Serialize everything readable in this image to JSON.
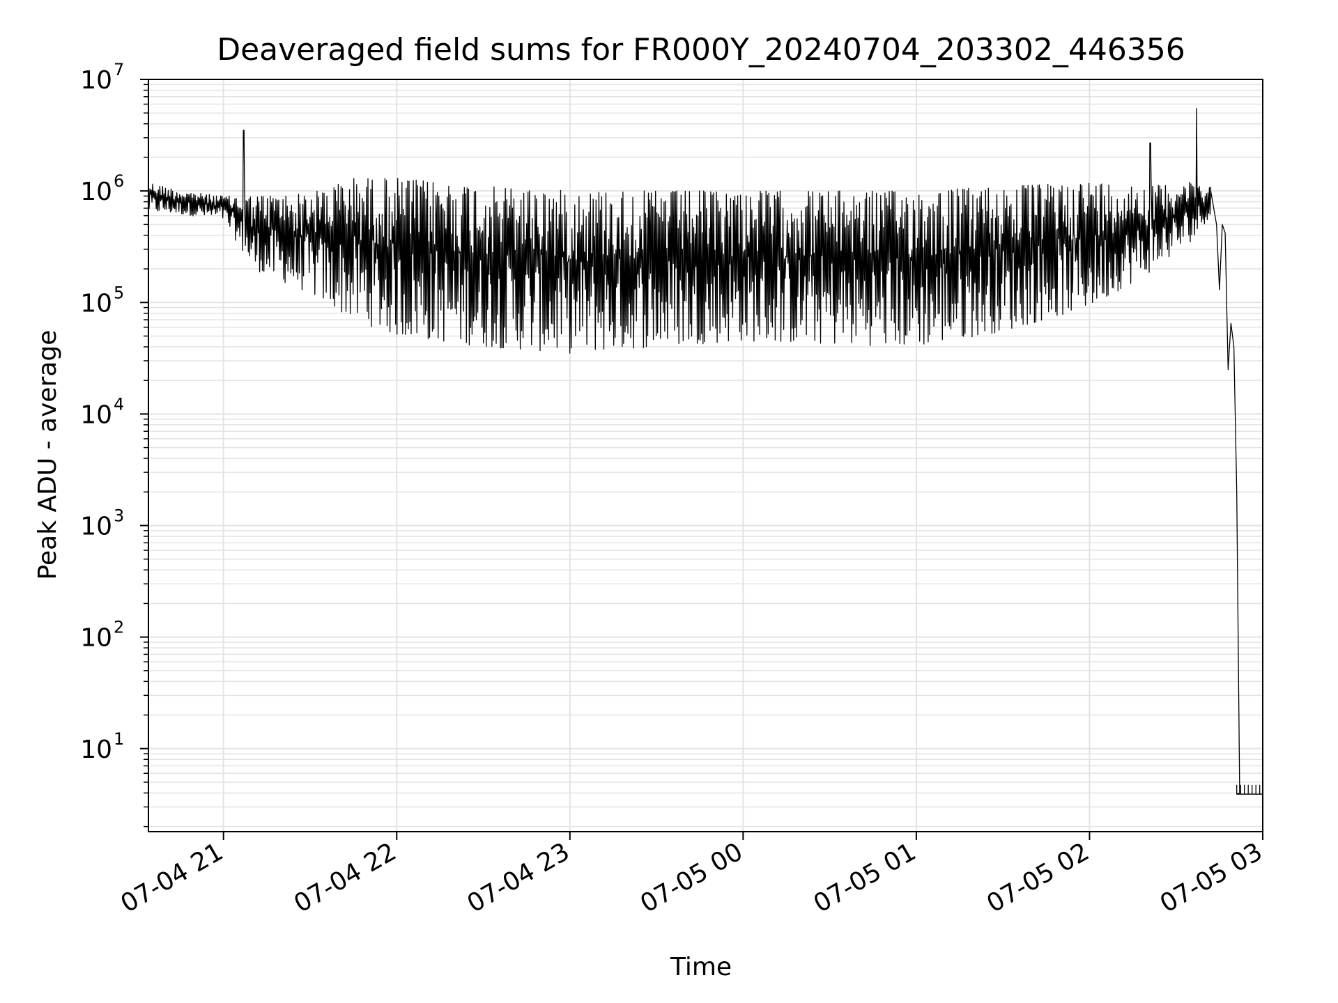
{
  "chart_data": {
    "type": "line",
    "title": "Deaveraged field sums for FR000Y_20240704_203302_446356",
    "xlabel": "Time",
    "ylabel": "Peak ADU - average",
    "yscale": "log",
    "xlim": [
      "2024-07-04 20:34",
      "2024-07-05 03:00"
    ],
    "ylim": [
      1.8,
      10000000
    ],
    "grid": true,
    "x_ticks": [
      {
        "value": "2024-07-04 21:00",
        "label": "07-04 21"
      },
      {
        "value": "2024-07-04 22:00",
        "label": "07-04 22"
      },
      {
        "value": "2024-07-04 23:00",
        "label": "07-04 23"
      },
      {
        "value": "2024-07-05 00:00",
        "label": "07-05 00"
      },
      {
        "value": "2024-07-05 01:00",
        "label": "07-05 01"
      },
      {
        "value": "2024-07-05 02:00",
        "label": "07-05 02"
      },
      {
        "value": "2024-07-05 03:00",
        "label": "07-05 03"
      }
    ],
    "y_ticks": [
      {
        "value": 10,
        "base": "10",
        "exp": "1"
      },
      {
        "value": 100,
        "base": "10",
        "exp": "2"
      },
      {
        "value": 1000,
        "base": "10",
        "exp": "3"
      },
      {
        "value": 10000,
        "base": "10",
        "exp": "4"
      },
      {
        "value": 100000,
        "base": "10",
        "exp": "5"
      },
      {
        "value": 1000000,
        "base": "10",
        "exp": "6"
      },
      {
        "value": 10000000,
        "base": "10",
        "exp": "7"
      }
    ],
    "series_color": "#000000",
    "envelope": {
      "x": [
        "2024-07-04 20:34",
        "2024-07-04 20:45",
        "2024-07-04 21:00",
        "2024-07-04 21:10",
        "2024-07-04 21:30",
        "2024-07-04 21:45",
        "2024-07-04 22:00",
        "2024-07-04 22:30",
        "2024-07-04 23:00",
        "2024-07-04 23:30",
        "2024-07-05 00:00",
        "2024-07-05 00:30",
        "2024-07-05 01:00",
        "2024-07-05 01:30",
        "2024-07-05 02:00",
        "2024-07-05 02:20",
        "2024-07-05 02:35",
        "2024-07-05 02:42"
      ],
      "upper": [
        1200000,
        1000000,
        900000,
        900000,
        950000,
        1300000,
        1300000,
        1100000,
        1000000,
        1000000,
        1000000,
        1000000,
        1000000,
        1100000,
        1200000,
        1100000,
        1200000,
        1100000
      ],
      "lower": [
        650000,
        620000,
        550000,
        200000,
        120000,
        70000,
        50000,
        40000,
        35000,
        40000,
        45000,
        42000,
        40000,
        55000,
        90000,
        180000,
        350000,
        600000
      ]
    },
    "spikes": [
      {
        "x": "2024-07-04 21:07",
        "y": 3500000
      },
      {
        "x": "2024-07-05 02:21",
        "y": 2700000
      },
      {
        "x": "2024-07-05 02:37",
        "y": 5500000
      }
    ],
    "drop": {
      "x": [
        "2024-07-05 02:42",
        "2024-07-05 02:44",
        "2024-07-05 02:45",
        "2024-07-05 02:46",
        "2024-07-05 02:47",
        "2024-07-05 02:48",
        "2024-07-05 02:49",
        "2024-07-05 02:50",
        "2024-07-05 02:51",
        "2024-07-05 02:52"
      ],
      "y": [
        1000000,
        500000,
        130000,
        500000,
        420000,
        25000,
        65000,
        40000,
        2000,
        4
      ]
    },
    "floor": {
      "x_start": "2024-07-05 02:51",
      "x_end": "2024-07-05 03:00",
      "y": 3.9,
      "y_tick_top": 4.7
    }
  }
}
